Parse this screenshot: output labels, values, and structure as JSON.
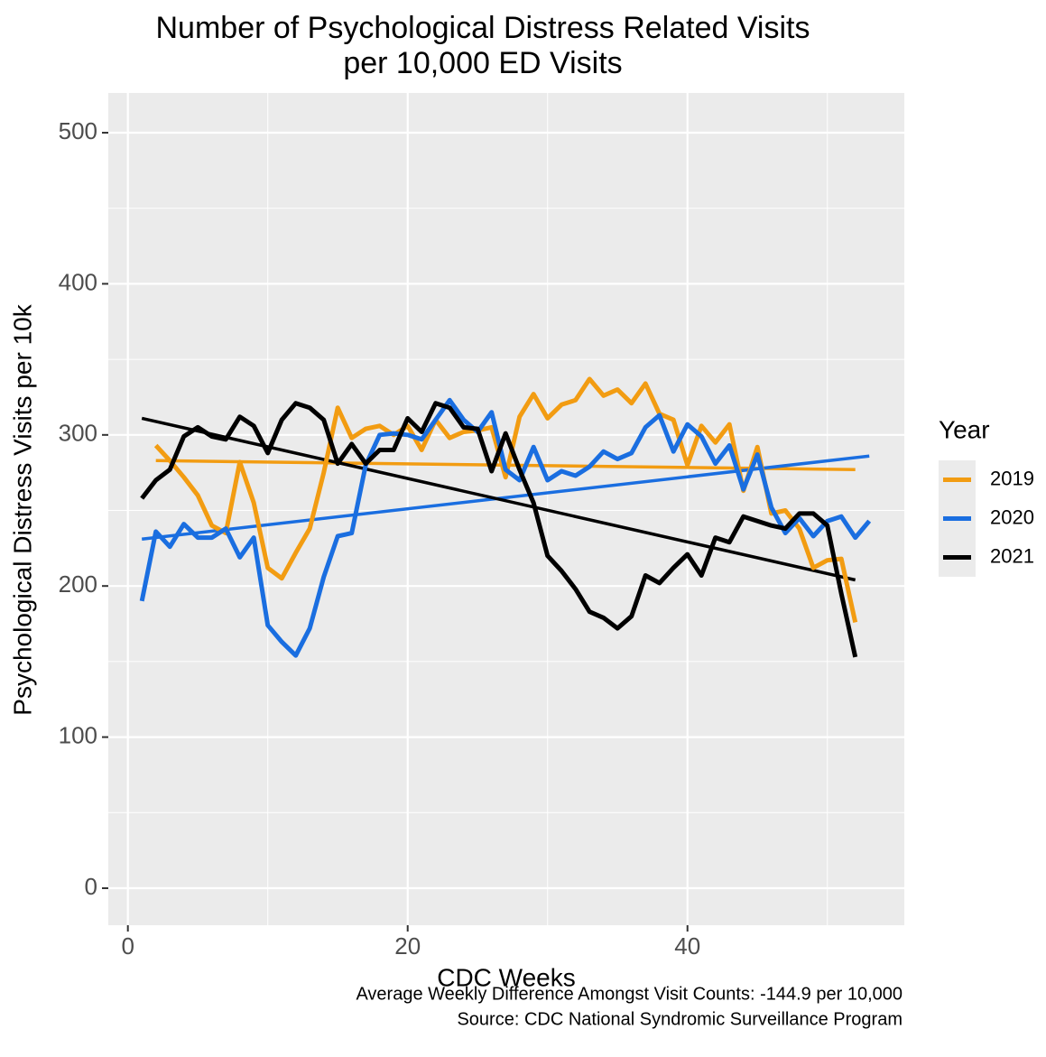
{
  "chart_data": {
    "type": "line",
    "title": [
      "Number of Psychological Distress Related Visits",
      "per 10,000 ED Visits"
    ],
    "x_label": "CDC Weeks",
    "y_label": "Psychological Distress Visits per 10k",
    "legend_title": "Year",
    "legend_position": "right",
    "caption": [
      "Average Weekly Difference Amongst Visit Counts: -144.9 per 10,000",
      "Source: CDC National Syndromic Surveillance Program"
    ],
    "xlim": [
      -1.4,
      55.5
    ],
    "ylim": [
      -24.5,
      526.3
    ],
    "xticks": [
      0,
      20,
      40
    ],
    "yticks": [
      0,
      100,
      200,
      300,
      400,
      500
    ],
    "minor_xticks": [
      10,
      30,
      50
    ],
    "minor_yticks": [
      50,
      150,
      250,
      350,
      450
    ],
    "grid": true,
    "series": [
      {
        "name": "2019",
        "color": "#f29c12",
        "x": [
          2,
          3,
          4,
          5,
          6,
          7,
          8,
          9,
          10,
          11,
          12,
          13,
          14,
          15,
          16,
          17,
          18,
          19,
          20,
          21,
          22,
          23,
          24,
          25,
          26,
          27,
          28,
          29,
          30,
          31,
          32,
          33,
          34,
          35,
          36,
          37,
          38,
          39,
          40,
          41,
          42,
          43,
          44,
          45,
          46,
          47,
          48,
          49,
          50,
          51,
          52
        ],
        "values": [
          293,
          283,
          272,
          260,
          240,
          235,
          282,
          255,
          212,
          205,
          222,
          238,
          275,
          318,
          298,
          304,
          306,
          300,
          306,
          290,
          310,
          298,
          302,
          303,
          305,
          272,
          312,
          327,
          311,
          320,
          323,
          337,
          326,
          330,
          321,
          334,
          314,
          310,
          280,
          306,
          295,
          307,
          263,
          292,
          248,
          250,
          238,
          212,
          217,
          218,
          176
        ],
        "trend_x": [
          2,
          52
        ],
        "trend_values": [
          283,
          277
        ]
      },
      {
        "name": "2020",
        "color": "#1a6ee0",
        "x": [
          1,
          2,
          3,
          4,
          5,
          6,
          7,
          8,
          9,
          10,
          11,
          12,
          13,
          14,
          15,
          16,
          17,
          18,
          19,
          20,
          21,
          22,
          23,
          24,
          25,
          26,
          27,
          28,
          29,
          30,
          31,
          32,
          33,
          34,
          35,
          36,
          37,
          38,
          39,
          40,
          41,
          42,
          43,
          44,
          45,
          46,
          47,
          48,
          49,
          50,
          51,
          52,
          53
        ],
        "values": [
          190,
          236,
          226,
          241,
          232,
          232,
          238,
          219,
          232,
          174,
          163,
          154,
          172,
          206,
          233,
          235,
          280,
          300,
          301,
          300,
          297,
          310,
          323,
          310,
          302,
          315,
          277,
          270,
          292,
          270,
          276,
          273,
          279,
          289,
          284,
          288,
          305,
          313,
          289,
          307,
          299,
          281,
          293,
          264,
          287,
          252,
          235,
          245,
          233,
          243,
          246,
          232,
          243
        ],
        "trend_x": [
          1,
          53
        ],
        "trend_values": [
          231,
          286
        ]
      },
      {
        "name": "2021",
        "color": "#000000",
        "x": [
          1,
          2,
          3,
          4,
          5,
          6,
          7,
          8,
          9,
          10,
          11,
          12,
          13,
          14,
          15,
          16,
          17,
          18,
          19,
          20,
          21,
          22,
          23,
          24,
          25,
          26,
          27,
          28,
          29,
          30,
          31,
          32,
          33,
          34,
          35,
          36,
          37,
          38,
          39,
          40,
          41,
          42,
          43,
          44,
          45,
          46,
          47,
          48,
          49,
          50,
          51,
          52
        ],
        "values": [
          258,
          270,
          277,
          299,
          305,
          299,
          297,
          312,
          306,
          288,
          310,
          321,
          318,
          310,
          281,
          294,
          281,
          290,
          290,
          311,
          302,
          321,
          318,
          305,
          304,
          276,
          301,
          277,
          255,
          220,
          210,
          198,
          183,
          179,
          172,
          180,
          207,
          202,
          212,
          221,
          207,
          232,
          229,
          246,
          243,
          240,
          238,
          248,
          248,
          240,
          195,
          153
        ],
        "trend_x": [
          1,
          52
        ],
        "trend_values": [
          311,
          204
        ]
      }
    ]
  }
}
